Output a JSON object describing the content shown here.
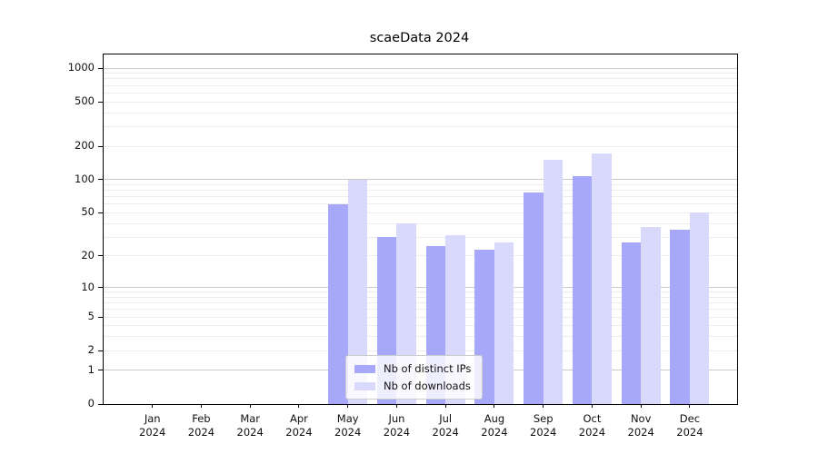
{
  "chart_data": {
    "type": "bar",
    "title": "scaeData 2024",
    "categories": [
      "Jan",
      "Feb",
      "Mar",
      "Apr",
      "May",
      "Jun",
      "Jul",
      "Aug",
      "Sep",
      "Oct",
      "Nov",
      "Dec"
    ],
    "category_sublabel": "2024",
    "series": [
      {
        "name": "Nb of distinct IPs",
        "color": "#a8a8fa",
        "values": [
          0,
          0,
          0,
          0,
          60,
          30,
          25,
          23,
          77,
          107,
          27,
          35
        ]
      },
      {
        "name": "Nb of downloads",
        "color": "#d9d9fb",
        "values": [
          0,
          0,
          0,
          0,
          100,
          40,
          31,
          27,
          150,
          173,
          37,
          50
        ]
      }
    ],
    "y_axis": {
      "scale": "log1p",
      "tick_labels": [
        1000,
        500,
        200,
        100,
        50,
        20,
        10,
        5,
        2,
        1,
        0
      ],
      "major_gridlines": [
        1,
        10,
        100,
        1000
      ],
      "minor_gridline_mantissas": [
        2,
        3,
        4,
        5,
        6,
        7,
        8,
        9
      ],
      "minor_gridline_decades": [
        1,
        10,
        100
      ],
      "ylim": [
        0,
        1290
      ]
    },
    "legend": {
      "position": "lower-center"
    },
    "colors": {
      "grid_minor": "#ececec",
      "grid_major": "#c9c9c9",
      "spine": "#000000",
      "text": "#111111"
    },
    "grid": true
  }
}
